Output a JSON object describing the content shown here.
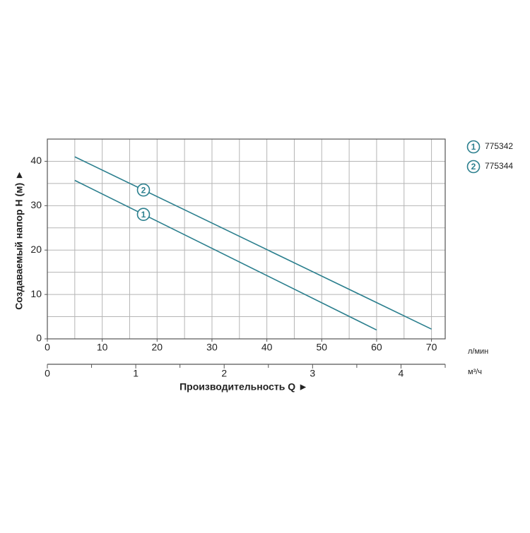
{
  "chart_data": {
    "type": "line",
    "ylabel": "Создаваемый напор Н (м) ►",
    "xlabel": "Производительность Q ►",
    "xunit": "л/мин",
    "x2unit": "м³/ч",
    "xlim": [
      0,
      72.5
    ],
    "xticks": [
      0,
      10,
      20,
      30,
      40,
      50,
      60,
      70
    ],
    "xgrid": [
      5,
      10,
      15,
      20,
      25,
      30,
      35,
      40,
      45,
      50,
      55,
      60,
      65,
      70
    ],
    "x2lim": [
      0,
      4.5
    ],
    "x2ticks": [
      0,
      1,
      2,
      3,
      4
    ],
    "x2minor": [
      0.5,
      1.5,
      2.5,
      3.5,
      4.5
    ],
    "ylim": [
      0,
      45
    ],
    "yticks": [
      0,
      10,
      20,
      30,
      40
    ],
    "ygrid": [
      5,
      10,
      15,
      20,
      25,
      30,
      35,
      40
    ],
    "grid": true,
    "series": [
      {
        "name": "775342",
        "label": "1",
        "color": "#2b7f8e",
        "x": [
          5,
          60
        ],
        "values": [
          35.7,
          2
        ]
      },
      {
        "name": "775344",
        "label": "2",
        "color": "#2b7f8e",
        "x": [
          5,
          70
        ],
        "values": [
          41,
          2.2
        ]
      }
    ]
  }
}
